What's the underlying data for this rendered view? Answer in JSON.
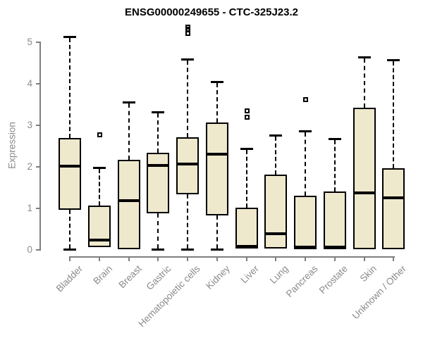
{
  "chart_data": {
    "type": "boxplot",
    "title": "ENSG00000249655 - CTC-325J23.2",
    "ylabel": "Expression",
    "xlabel": "",
    "ylim": [
      0,
      5.45
    ],
    "yticks": [
      0,
      1,
      2,
      3,
      4,
      5
    ],
    "grid": false,
    "legend_position": "none",
    "colors": {
      "box_fill": "#EEE8CD",
      "box_border": "#000000",
      "median": "#000000",
      "whisker": "#000000",
      "axis": "#7E7E7E",
      "tick_label": "#8A8A8A",
      "title": "#000000"
    },
    "categories": [
      "Bladder",
      "Brain",
      "Breast",
      "Gastric",
      "Hematopoietic cells",
      "Kidney",
      "Liver",
      "Lung",
      "Pancreas",
      "Prostate",
      "Skin",
      "Unknown / Other"
    ],
    "series": [
      {
        "name": "Bladder",
        "min": 0.02,
        "q1": 0.96,
        "median": 2.01,
        "q3": 2.69,
        "max": 5.12,
        "outliers": []
      },
      {
        "name": "Brain",
        "min": 0.02,
        "q1": 0.06,
        "median": 0.24,
        "q3": 1.06,
        "max": 1.97,
        "outliers": [
          2.78
        ]
      },
      {
        "name": "Breast",
        "min": 0.01,
        "q1": 0.02,
        "median": 1.19,
        "q3": 2.17,
        "max": 3.54,
        "outliers": []
      },
      {
        "name": "Gastric",
        "min": 0.02,
        "q1": 0.88,
        "median": 2.03,
        "q3": 2.34,
        "max": 3.31,
        "outliers": []
      },
      {
        "name": "Hematopoietic cells",
        "min": 0.02,
        "q1": 1.34,
        "median": 2.07,
        "q3": 2.72,
        "max": 4.58,
        "outliers": [
          5.38,
          5.32,
          5.22
        ]
      },
      {
        "name": "Kidney",
        "min": 0.02,
        "q1": 0.83,
        "median": 2.3,
        "q3": 3.07,
        "max": 4.03,
        "outliers": []
      },
      {
        "name": "Liver",
        "min": 0.01,
        "q1": 0.03,
        "median": 0.06,
        "q3": 1.02,
        "max": 2.43,
        "outliers": [
          3.35,
          3.2
        ]
      },
      {
        "name": "Lung",
        "min": 0.01,
        "q1": 0.03,
        "median": 0.39,
        "q3": 1.81,
        "max": 2.74,
        "outliers": []
      },
      {
        "name": "Pancreas",
        "min": 0.01,
        "q1": 0.02,
        "median": 0.05,
        "q3": 1.3,
        "max": 2.85,
        "outliers": [
          3.62
        ]
      },
      {
        "name": "Prostate",
        "min": 0.01,
        "q1": 0.02,
        "median": 0.05,
        "q3": 1.41,
        "max": 2.66,
        "outliers": []
      },
      {
        "name": "Skin",
        "min": 0.01,
        "q1": 0.02,
        "median": 1.37,
        "q3": 3.43,
        "max": 4.62,
        "outliers": []
      },
      {
        "name": "Unknown / Other",
        "min": 0.01,
        "q1": 0.02,
        "median": 1.25,
        "q3": 1.96,
        "max": 4.56,
        "outliers": []
      }
    ]
  }
}
